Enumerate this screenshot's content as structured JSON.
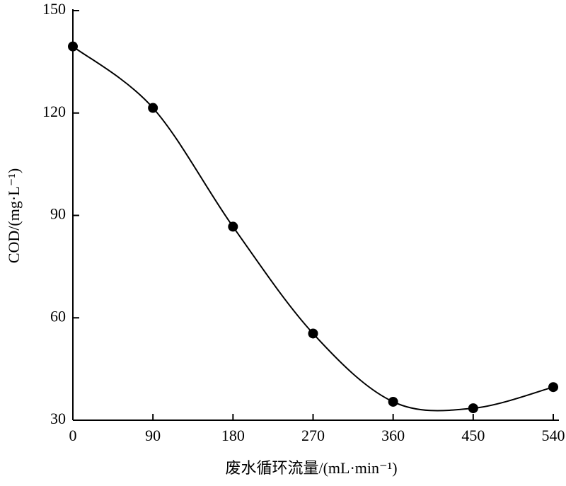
{
  "chart_data": {
    "type": "line",
    "x_label": "废水循环流量/(mL·min⁻¹)",
    "y_label": "COD/(mg·L⁻¹)",
    "x": [
      0,
      90,
      180,
      270,
      360,
      450,
      540
    ],
    "values": [
      139.5,
      121.5,
      86.7,
      55.4,
      35.4,
      33.5,
      39.7
    ],
    "color": "#000000",
    "xlim": [
      0,
      540
    ],
    "xticks": [
      0,
      90,
      180,
      270,
      360,
      450,
      540
    ],
    "ylim": [
      30,
      150
    ],
    "yticks": [
      30,
      60,
      90,
      120,
      150
    ]
  }
}
